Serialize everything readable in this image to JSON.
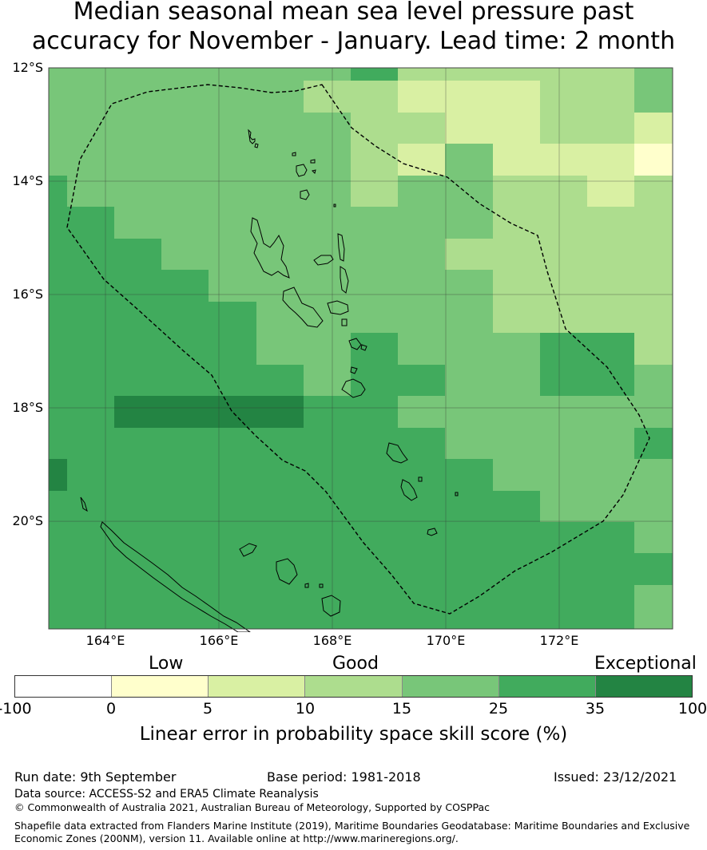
{
  "title_line1": "Median seasonal mean sea level pressure past",
  "title_line2": "accuracy for November - January. Lead time: 2 month",
  "map": {
    "lat_labels": [
      "12°S",
      "14°S",
      "16°S",
      "18°S",
      "20°S"
    ],
    "lon_labels": [
      "164°E",
      "166°E",
      "168°E",
      "170°E",
      "172°E"
    ],
    "lon_range": [
      163.0,
      174.0
    ],
    "lat_range": [
      -21.9,
      -12.0
    ],
    "grid_lons": [
      164,
      166,
      168,
      170,
      172
    ],
    "grid_lats": [
      -12,
      -14,
      -16,
      -18,
      -20
    ]
  },
  "legend": {
    "category_labels": [
      "Low",
      "Good",
      "Exceptional"
    ],
    "tick_labels": [
      "-100",
      "0",
      "5",
      "10",
      "15",
      "25",
      "35",
      "100"
    ],
    "colors": [
      "#ffffff",
      "#ffffcc",
      "#d9f0a3",
      "#addd8e",
      "#78c679",
      "#41ab5d",
      "#238443"
    ],
    "title": "Linear error in probability space skill score (%)"
  },
  "footer": {
    "run_date": "Run date: 9th September",
    "base_period": "Base period: 1981-2018",
    "issued": "Issued: 23/12/2021",
    "data_source": "Data source: ACCESS-S2 and ERA5 Climate Reanalysis",
    "copyright": "© Commonwealth of Australia 2021, Australian Bureau of Meteorology, Supported by COSPPac",
    "shapefile_line1": "Shapefile data extracted from Flanders Marine Institute (2019), Maritime Boundaries Geodatabase: Maritime Boundaries and Exclusive",
    "shapefile_line2": "Economic Zones (200NM), version 11. Available online at http://www.marineregions.org/."
  }
}
